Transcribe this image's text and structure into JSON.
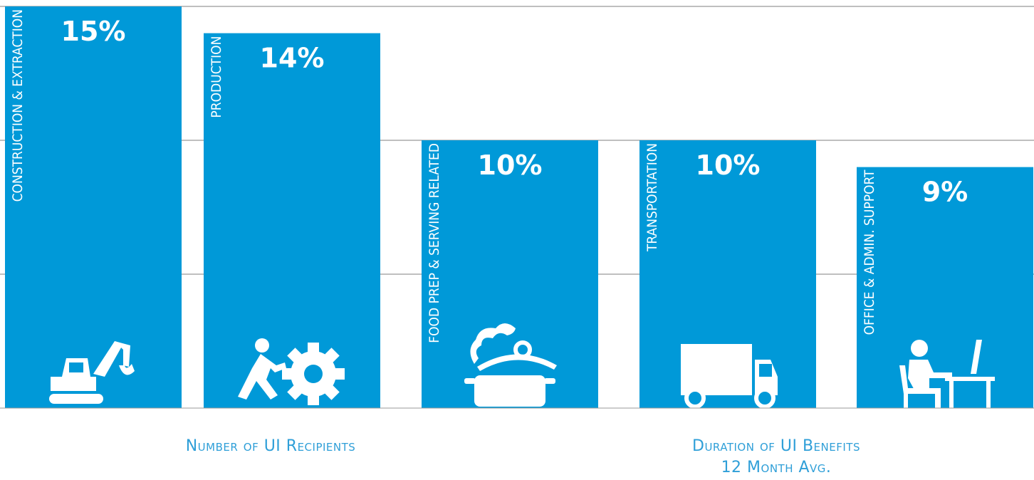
{
  "chart_data": {
    "type": "bar",
    "title": "",
    "xlabel": "",
    "ylabel": "",
    "ylim": [
      0,
      15
    ],
    "grid": true,
    "categories": [
      "CONSTRUCTION & EXTRACTION",
      "PRODUCTION",
      "FOOD PREP & SERVING RELATED",
      "TRANSPORTATION",
      "OFFICE & ADMIN. SUPPORT"
    ],
    "values": [
      15,
      14,
      10,
      10,
      9
    ],
    "value_labels": [
      "15%",
      "14%",
      "10%",
      "10%",
      "9%"
    ],
    "icons": [
      "excavator-icon",
      "worker-pushing-gear-icon",
      "cooking-pot-icon",
      "delivery-truck-icon",
      "person-at-desk-computer-icon"
    ],
    "bar_color": "#0099d8",
    "grid_color": "#999999"
  },
  "footer": {
    "left_label": "Number of UI Recipients",
    "right_line1": "Duration of UI Benefits",
    "right_line2": "12 Month Avg."
  }
}
